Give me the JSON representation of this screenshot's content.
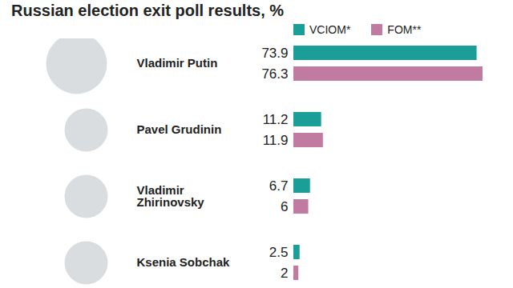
{
  "chart_data": {
    "type": "bar",
    "title": "Russian election exit poll results, %",
    "orientation": "horizontal",
    "categories": [
      "Vladimir Putin",
      "Pavel Grudinin",
      "Vladimir Zhirinovsky",
      "Ksenia Sobchak"
    ],
    "series": [
      {
        "name": "VCIOM*",
        "color": "#1b9e98",
        "values": [
          73.9,
          11.2,
          6.7,
          2.5
        ]
      },
      {
        "name": "FOM**",
        "color": "#c27ba0",
        "values": [
          76.3,
          11.9,
          6,
          2
        ]
      }
    ],
    "data_labels": true,
    "tick_labels": false,
    "legend": "top"
  }
}
